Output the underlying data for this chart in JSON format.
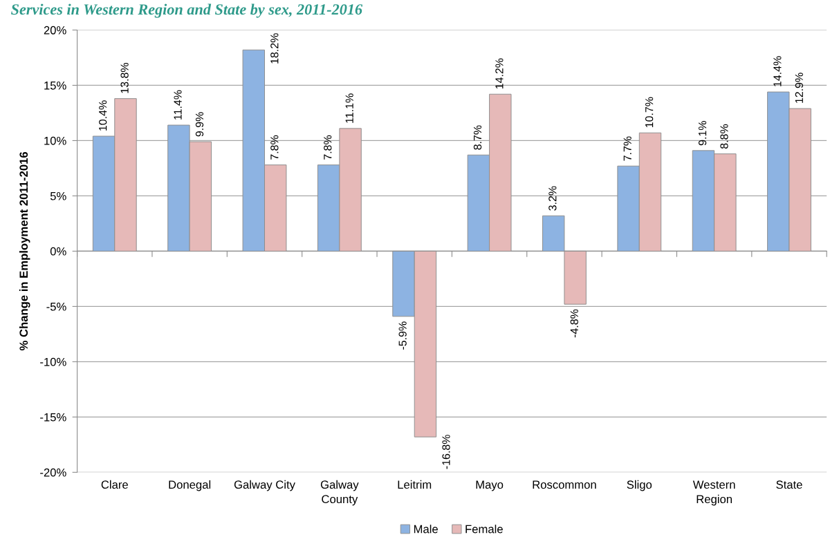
{
  "chart_data": {
    "type": "bar",
    "title": "Services in Western Region and State by sex, 2011-2016",
    "ylabel": "% Change in Employment 2011-2016",
    "categories": [
      "Clare",
      "Donegal",
      "Galway City",
      "Galway\nCounty",
      "Leitrim",
      "Mayo",
      "Roscommon",
      "Sligo",
      "Western\nRegion",
      "State"
    ],
    "series": [
      {
        "name": "Male",
        "color": "#8db3e2",
        "values": [
          10.4,
          11.4,
          18.2,
          7.8,
          -5.9,
          8.7,
          3.2,
          7.7,
          9.1,
          14.4
        ],
        "value_labels": [
          "10.4%",
          "11.4%",
          "18.2%",
          "7.8%",
          "-5.9%",
          "8.7%",
          "3.2%",
          "7.7%",
          "9.1%",
          "14.4%"
        ]
      },
      {
        "name": "Female",
        "color": "#e6b9b8",
        "values": [
          13.8,
          9.9,
          7.8,
          11.1,
          -16.8,
          14.2,
          -4.8,
          10.7,
          8.8,
          12.9
        ],
        "value_labels": [
          "13.8%",
          "9.9%",
          "7.8%",
          "11.1%",
          "-16.8%",
          "14.2%",
          "-4.8%",
          "10.7%",
          "8.8%",
          "12.9%"
        ]
      }
    ],
    "ylim": [
      -20,
      20
    ],
    "yticks": [
      {
        "value": -20,
        "label": "-20%"
      },
      {
        "value": -15,
        "label": "-15%"
      },
      {
        "value": -10,
        "label": "-10%"
      },
      {
        "value": -5,
        "label": "-5%"
      },
      {
        "value": 0,
        "label": "0%"
      },
      {
        "value": 5,
        "label": "5%"
      },
      {
        "value": 10,
        "label": "10%"
      },
      {
        "value": 15,
        "label": "15%"
      },
      {
        "value": 20,
        "label": "20%"
      }
    ],
    "grid": "y",
    "legend": "bottom"
  }
}
